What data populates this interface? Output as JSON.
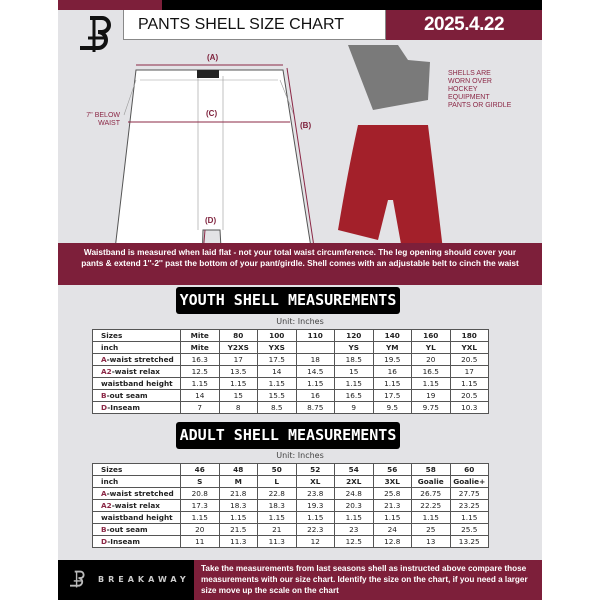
{
  "header": {
    "title": "PANTS SHELL SIZE CHART",
    "date": "2025.4.22",
    "brand_logo": "B"
  },
  "diagram": {
    "label_a": "(A)",
    "label_b": "(B)",
    "label_c": "(C)",
    "label_d": "(D)",
    "c_note": "7'' BELOW WAIST",
    "photo_note": "SHELLS ARE WORN OVER HOCKEY EQUIPMENT PANTS OR GIRDLE",
    "colors": {
      "shell": "#a3202a",
      "girdle": "#7a7a7a"
    }
  },
  "banner": "Waistband is measured when laid flat - not your total waist circumference. The leg opening should cover your pants & extend 1''-2'' past the bottom of your pant/girdle. Shell comes with an adjustable belt to cinch the waist",
  "youth": {
    "title": "YOUTH SHELL MEASUREMENTS",
    "unit": "Unit: Inches",
    "rows": [
      {
        "k": "",
        "label": "Sizes",
        "v": [
          "Mite",
          "80",
          "100",
          "110",
          "120",
          "140",
          "160",
          "180"
        ]
      },
      {
        "k": "",
        "label": "inch",
        "v": [
          "Mite",
          "Y2XS",
          "YXS",
          "",
          "YS",
          "YM",
          "YL",
          "YXL"
        ]
      },
      {
        "k": "A",
        "label": "-waist stretched",
        "v": [
          "16.3",
          "17",
          "17.5",
          "18",
          "18.5",
          "19.5",
          "20",
          "20.5"
        ]
      },
      {
        "k": "A2",
        "label": "-waist relax",
        "v": [
          "12.5",
          "13.5",
          "14",
          "14.5",
          "15",
          "16",
          "16.5",
          "17"
        ]
      },
      {
        "k": "",
        "label": "waistband height",
        "v": [
          "1.15",
          "1.15",
          "1.15",
          "1.15",
          "1.15",
          "1.15",
          "1.15",
          "1.15"
        ]
      },
      {
        "k": "B",
        "label": "-out seam",
        "v": [
          "14",
          "15",
          "15.5",
          "16",
          "16.5",
          "17.5",
          "19",
          "20.5"
        ]
      },
      {
        "k": "D",
        "label": "-Inseam",
        "v": [
          "7",
          "8",
          "8.5",
          "8.75",
          "9",
          "9.5",
          "9.75",
          "10.3"
        ]
      }
    ]
  },
  "adult": {
    "title": "ADULT SHELL MEASUREMENTS",
    "unit": "Unit: Inches",
    "rows": [
      {
        "k": "",
        "label": "Sizes",
        "v": [
          "46",
          "48",
          "50",
          "52",
          "54",
          "56",
          "58",
          "60"
        ]
      },
      {
        "k": "",
        "label": "inch",
        "v": [
          "S",
          "M",
          "L",
          "XL",
          "2XL",
          "3XL",
          "Goalie",
          "Goalie+"
        ]
      },
      {
        "k": "A",
        "label": "-waist stretched",
        "v": [
          "20.8",
          "21.8",
          "22.8",
          "23.8",
          "24.8",
          "25.8",
          "26.75",
          "27.75"
        ]
      },
      {
        "k": "A2",
        "label": "-waist relax",
        "v": [
          "17.3",
          "18.3",
          "18.3",
          "19.3",
          "20.3",
          "21.3",
          "22.25",
          "23.25"
        ]
      },
      {
        "k": "",
        "label": "waistband height",
        "v": [
          "1.15",
          "1.15",
          "1.15",
          "1.15",
          "1.15",
          "1.15",
          "1.15",
          "1.15"
        ]
      },
      {
        "k": "B",
        "label": "-out seam",
        "v": [
          "20",
          "21.5",
          "21",
          "22.3",
          "23",
          "24",
          "25",
          "25.5"
        ]
      },
      {
        "k": "D",
        "label": "-Inseam",
        "v": [
          "11",
          "11.3",
          "11.3",
          "12",
          "12.5",
          "12.8",
          "13",
          "13.25"
        ]
      }
    ]
  },
  "footer": {
    "brand": "BREAKAWAY",
    "text": "Take the measurements from last seasons shell as instructed above compare those measurements  with our size chart. Identify the size on the chart, if you need a larger size move up the scale on the chart"
  },
  "colors": {
    "accent": "#7d1f3a",
    "dark": "#000000",
    "background": "#e3e3e6"
  }
}
